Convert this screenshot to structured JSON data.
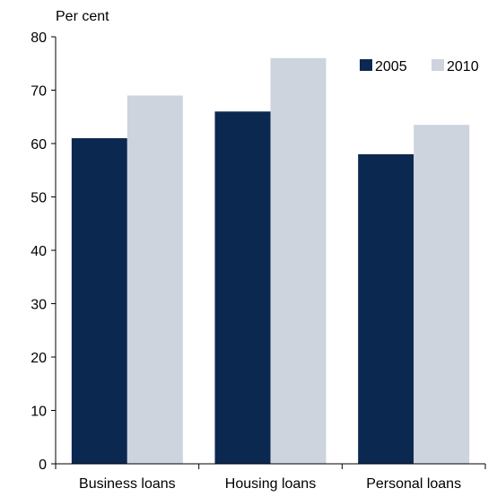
{
  "chart_data": {
    "type": "bar",
    "title": "",
    "xlabel": "",
    "ylabel": "Per cent",
    "ylim": [
      0,
      80
    ],
    "yticks": [
      0,
      10,
      20,
      30,
      40,
      50,
      60,
      70,
      80
    ],
    "categories": [
      "Business loans",
      "Housing loans",
      "Personal loans"
    ],
    "series": [
      {
        "name": "2005",
        "values": [
          61,
          66,
          58
        ],
        "color": "#0b2850"
      },
      {
        "name": "2010",
        "values": [
          69,
          76,
          63.5
        ],
        "color": "#cdd4de"
      }
    ],
    "legend": "top-right",
    "grid": false
  }
}
